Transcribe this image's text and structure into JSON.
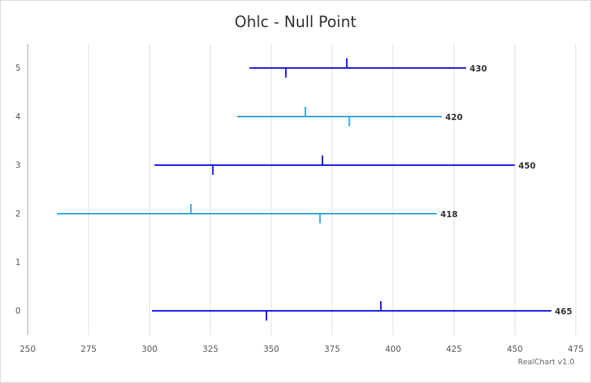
{
  "chart_data": {
    "type": "ohlc",
    "title": "Ohlc - Null Point",
    "credit": "RealChart v1.0",
    "orientation": "horizontal",
    "value_axis": {
      "min": 250,
      "max": 475,
      "ticks": [
        250,
        275,
        300,
        325,
        350,
        375,
        400,
        425,
        450,
        475
      ],
      "grid": true
    },
    "category_axis": {
      "ticks": [
        "0",
        "1",
        "2",
        "3",
        "4",
        "5"
      ]
    },
    "colors": {
      "up": "#0000dd",
      "down": "#1a9ee2",
      "grid": "#dddddd",
      "axis": "#cccccc"
    },
    "points": [
      {
        "category": "0",
        "open": 348,
        "high": 465,
        "low": 301,
        "close": 395,
        "label": "465"
      },
      {
        "category": "1",
        "open": null,
        "high": null,
        "low": null,
        "close": null,
        "label": null
      },
      {
        "category": "2",
        "open": 370,
        "high": 418,
        "low": 262,
        "close": 317,
        "label": "418"
      },
      {
        "category": "3",
        "open": 326,
        "high": 450,
        "low": 302,
        "close": 371,
        "label": "450"
      },
      {
        "category": "4",
        "open": 382,
        "high": 420,
        "low": 336,
        "close": 364,
        "label": "420"
      },
      {
        "category": "5",
        "open": 356,
        "high": 430,
        "low": 341,
        "close": 381,
        "label": "430"
      }
    ]
  }
}
